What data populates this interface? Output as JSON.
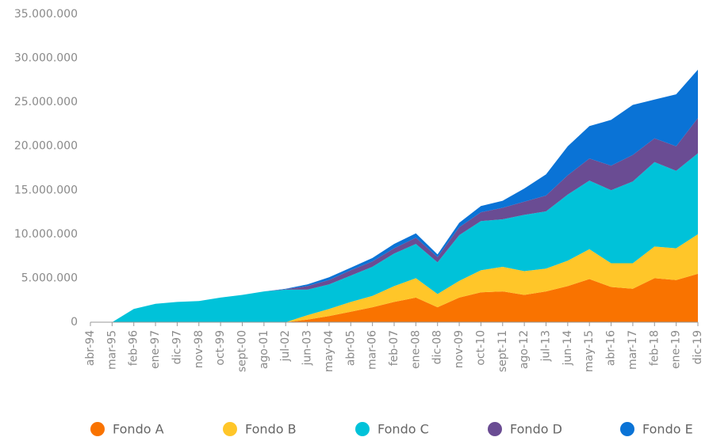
{
  "chart_data": {
    "type": "stacked_area",
    "categories": [
      "abr-94",
      "mar-95",
      "feb-96",
      "ene-97",
      "dic-97",
      "nov-98",
      "oct-99",
      "sept-00",
      "ago-01",
      "jul-02",
      "jun-03",
      "may-04",
      "abr-05",
      "mar-06",
      "feb-07",
      "ene-08",
      "dic-08",
      "nov-09",
      "oct-10",
      "sept-11",
      "ago-12",
      "jul-13",
      "jun-14",
      "may-15",
      "abr-16",
      "mar-17",
      "feb-18",
      "ene-19",
      "dic-19"
    ],
    "series": [
      {
        "name": "Fondo A",
        "color": "#f97300",
        "values": [
          0,
          0,
          0,
          0,
          0,
          0,
          0,
          0,
          0,
          0,
          300000,
          700000,
          1200000,
          1700000,
          2300000,
          2800000,
          1700000,
          2800000,
          3400000,
          3500000,
          3100000,
          3500000,
          4100000,
          4900000,
          4000000,
          3800000,
          5000000,
          4800000,
          5500000
        ]
      },
      {
        "name": "Fondo B",
        "color": "#ffc629",
        "values": [
          0,
          0,
          0,
          0,
          0,
          0,
          0,
          0,
          0,
          0,
          500000,
          800000,
          1100000,
          1300000,
          1800000,
          2200000,
          1500000,
          1900000,
          2500000,
          2800000,
          2700000,
          2600000,
          2900000,
          3400000,
          2700000,
          2900000,
          3600000,
          3600000,
          4500000
        ]
      },
      {
        "name": "Fondo C",
        "color": "#00c2d9",
        "values": [
          0,
          0,
          1500000,
          2100000,
          2300000,
          2400000,
          2800000,
          3100000,
          3500000,
          3700000,
          2900000,
          2800000,
          3000000,
          3300000,
          3700000,
          3900000,
          3600000,
          5200000,
          5600000,
          5400000,
          6400000,
          6500000,
          7500000,
          7800000,
          8300000,
          9300000,
          9600000,
          8800000,
          9200000
        ]
      },
      {
        "name": "Fondo D",
        "color": "#6a4c93",
        "values": [
          0,
          0,
          0,
          0,
          0,
          0,
          0,
          0,
          0,
          50000,
          400000,
          500000,
          600000,
          600000,
          600000,
          700000,
          600000,
          900000,
          1000000,
          1300000,
          1500000,
          1800000,
          2200000,
          2500000,
          2800000,
          3000000,
          2700000,
          2800000,
          4000000
        ]
      },
      {
        "name": "Fondo E",
        "color": "#0a73d6",
        "values": [
          0,
          0,
          0,
          0,
          0,
          0,
          0,
          0,
          0,
          50000,
          200000,
          300000,
          300000,
          400000,
          500000,
          500000,
          300000,
          500000,
          700000,
          800000,
          1500000,
          2400000,
          3300000,
          3700000,
          5200000,
          5700000,
          4400000,
          5900000,
          5500000
        ]
      }
    ],
    "ylim": [
      0,
      35000000
    ],
    "yticks": [
      0,
      {
        "value": 5000000,
        "label": "5.000.000"
      },
      {
        "value": 10000000,
        "label": "10.000.000"
      },
      {
        "value": 15000000,
        "label": "15.000.000"
      },
      {
        "value": 20000000,
        "label": "20.000.000"
      },
      {
        "value": 25000000,
        "label": "25.000.000"
      },
      {
        "value": 30000000,
        "label": "30.000.000"
      },
      {
        "value": 35000000,
        "label": "35.000.000"
      }
    ],
    "legend": "bottom"
  }
}
